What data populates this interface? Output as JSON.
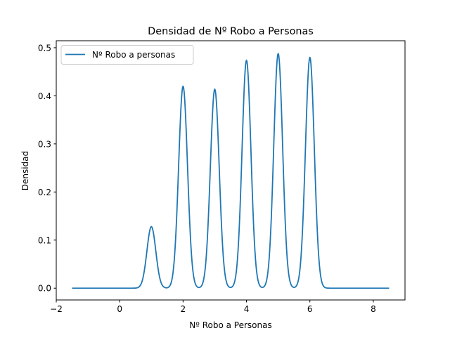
{
  "chart_data": {
    "type": "line",
    "title": "Densidad de Nº Robo a Personas",
    "xlabel": "Nº Robo a Personas",
    "ylabel": "Densidad",
    "xlim": [
      -2,
      9
    ],
    "ylim": [
      -0.0245,
      0.5145
    ],
    "x_ticks": [
      -2,
      0,
      2,
      4,
      6,
      8
    ],
    "y_ticks": [
      0.0,
      0.1,
      0.2,
      0.3,
      0.4,
      0.5
    ],
    "x_tick_labels": [
      "−2",
      "0",
      "2",
      "4",
      "6",
      "8"
    ],
    "y_tick_labels": [
      "0.0",
      "0.1",
      "0.2",
      "0.3",
      "0.4",
      "0.5"
    ],
    "grid": false,
    "legend": "upper-left",
    "series": [
      {
        "name": "Nº Robo a personas",
        "color": "#1f77b4",
        "peaks": [
          {
            "x": 1,
            "density": 0.128
          },
          {
            "x": 2,
            "density": 0.42
          },
          {
            "x": 3,
            "density": 0.414
          },
          {
            "x": 4,
            "density": 0.474
          },
          {
            "x": 5,
            "density": 0.488
          },
          {
            "x": 6,
            "density": 0.48
          }
        ],
        "x_range": [
          -1.5,
          8.5
        ]
      }
    ]
  }
}
